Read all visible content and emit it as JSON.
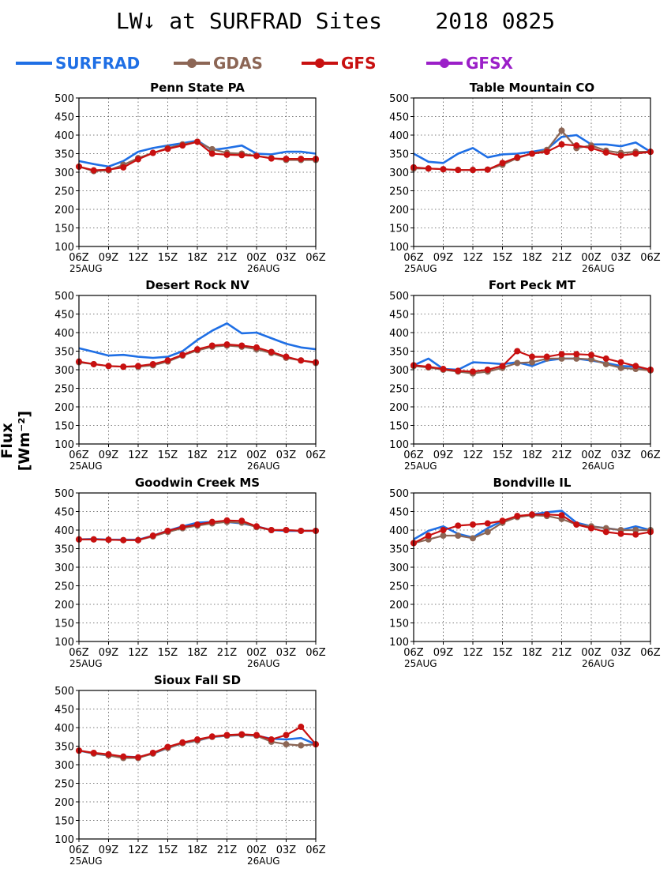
{
  "title": "LW↓ at SURFRAD Sites    2018 0825",
  "ylabel": "Flux [Wm⁻²]",
  "legend": [
    {
      "name": "SURFRAD",
      "color": "#1f6fe5",
      "marker": false
    },
    {
      "name": "GDAS",
      "color": "#8c6655",
      "marker": true
    },
    {
      "name": "GFS",
      "color": "#c81010",
      "marker": true
    },
    {
      "name": "GFSX",
      "color": "#9b1fc8",
      "marker": true
    }
  ],
  "axes": {
    "yticks": [
      100,
      150,
      200,
      250,
      300,
      350,
      400,
      450,
      500
    ],
    "ylim": [
      100,
      500
    ],
    "xticks": [
      "06Z",
      "09Z",
      "12Z",
      "15Z",
      "18Z",
      "21Z",
      "00Z",
      "03Z",
      "06Z"
    ],
    "xlim": [
      0,
      24
    ],
    "xday_labels": [
      {
        "x": 0,
        "text": "25AUG"
      },
      {
        "x": 18,
        "text": "26AUG"
      }
    ],
    "grid": true
  },
  "chart_data": [
    {
      "type": "line",
      "title": "Penn State PA",
      "x_hours": [
        0,
        1.5,
        3,
        4.5,
        6,
        7.5,
        9,
        10.5,
        12,
        13.5,
        15,
        16.5,
        18,
        19.5,
        21,
        22.5,
        24
      ],
      "series": [
        {
          "name": "SURFRAD",
          "values": [
            330,
            322,
            315,
            330,
            355,
            365,
            372,
            378,
            385,
            360,
            365,
            372,
            350,
            348,
            355,
            355,
            350
          ]
        },
        {
          "name": "GDAS",
          "values": [
            315,
            303,
            305,
            320,
            338,
            352,
            365,
            375,
            382,
            362,
            352,
            350,
            344,
            338,
            333,
            333,
            333
          ]
        },
        {
          "name": "GFS",
          "values": [
            315,
            305,
            307,
            313,
            335,
            352,
            363,
            372,
            382,
            350,
            347,
            346,
            344,
            337,
            336,
            336,
            336
          ]
        }
      ]
    },
    {
      "type": "line",
      "title": "Table Mountain CO",
      "x_hours": [
        0,
        1.5,
        3,
        4.5,
        6,
        7.5,
        9,
        10.5,
        12,
        13.5,
        15,
        16.5,
        18,
        19.5,
        21,
        22.5,
        24
      ],
      "series": [
        {
          "name": "SURFRAD",
          "values": [
            350,
            328,
            325,
            350,
            365,
            340,
            348,
            350,
            355,
            362,
            395,
            400,
            375,
            375,
            370,
            380,
            355
          ]
        },
        {
          "name": "GDAS",
          "values": [
            310,
            310,
            308,
            306,
            306,
            307,
            320,
            338,
            350,
            360,
            412,
            365,
            372,
            358,
            352,
            355,
            355
          ]
        },
        {
          "name": "GFS",
          "values": [
            313,
            310,
            308,
            306,
            306,
            307,
            325,
            340,
            350,
            355,
            375,
            372,
            365,
            353,
            345,
            350,
            355
          ]
        }
      ]
    },
    {
      "type": "line",
      "title": "Desert Rock NV",
      "x_hours": [
        0,
        1.5,
        3,
        4.5,
        6,
        7.5,
        9,
        10.5,
        12,
        13.5,
        15,
        16.5,
        18,
        19.5,
        21,
        22.5,
        24
      ],
      "series": [
        {
          "name": "SURFRAD",
          "values": [
            358,
            348,
            338,
            340,
            335,
            332,
            335,
            350,
            380,
            405,
            425,
            398,
            400,
            385,
            370,
            360,
            355
          ]
        },
        {
          "name": "GDAS",
          "values": [
            320,
            315,
            310,
            308,
            308,
            312,
            322,
            338,
            352,
            362,
            365,
            362,
            355,
            345,
            332,
            325,
            318
          ]
        },
        {
          "name": "GFS",
          "values": [
            322,
            315,
            310,
            308,
            310,
            315,
            325,
            340,
            355,
            365,
            368,
            365,
            360,
            348,
            335,
            325,
            320
          ]
        }
      ]
    },
    {
      "type": "line",
      "title": "Fort Peck MT",
      "x_hours": [
        0,
        1.5,
        3,
        4.5,
        6,
        7.5,
        9,
        10.5,
        12,
        13.5,
        15,
        16.5,
        18,
        19.5,
        21,
        22.5,
        24
      ],
      "series": [
        {
          "name": "SURFRAD",
          "values": [
            312,
            330,
            302,
            300,
            320,
            318,
            315,
            320,
            310,
            325,
            330,
            330,
            325,
            318,
            310,
            308,
            300
          ]
        },
        {
          "name": "GDAS",
          "values": [
            310,
            306,
            300,
            295,
            290,
            295,
            305,
            318,
            320,
            330,
            330,
            330,
            328,
            315,
            305,
            302,
            298
          ]
        },
        {
          "name": "GFS",
          "values": [
            312,
            308,
            302,
            297,
            295,
            300,
            310,
            350,
            335,
            335,
            342,
            342,
            340,
            330,
            320,
            310,
            300
          ]
        }
      ]
    },
    {
      "type": "line",
      "title": "Goodwin Creek MS",
      "x_hours": [
        0,
        1.5,
        3,
        4.5,
        6,
        7.5,
        9,
        10.5,
        12,
        13.5,
        15,
        16.5,
        18,
        19.5,
        21,
        22.5,
        24
      ],
      "series": [
        {
          "name": "SURFRAD",
          "values": [
            375,
            376,
            374,
            374,
            374,
            385,
            398,
            410,
            420,
            422,
            422,
            418,
            410,
            400,
            398,
            398,
            398
          ]
        },
        {
          "name": "GDAS",
          "values": [
            375,
            375,
            374,
            373,
            373,
            383,
            395,
            405,
            412,
            418,
            422,
            420,
            408,
            400,
            400,
            398,
            398
          ]
        },
        {
          "name": "GFS",
          "values": [
            375,
            375,
            374,
            373,
            373,
            385,
            398,
            408,
            415,
            422,
            426,
            425,
            410,
            400,
            400,
            398,
            398
          ]
        }
      ]
    },
    {
      "type": "line",
      "title": "Bondville IL",
      "x_hours": [
        0,
        1.5,
        3,
        4.5,
        6,
        7.5,
        9,
        10.5,
        12,
        13.5,
        15,
        16.5,
        18,
        19.5,
        21,
        22.5,
        24
      ],
      "series": [
        {
          "name": "SURFRAD",
          "values": [
            375,
            398,
            410,
            390,
            380,
            405,
            425,
            435,
            442,
            448,
            452,
            420,
            410,
            405,
            400,
            410,
            400
          ]
        },
        {
          "name": "GDAS",
          "values": [
            365,
            375,
            385,
            385,
            378,
            395,
            420,
            435,
            440,
            438,
            430,
            415,
            410,
            405,
            400,
            400,
            400
          ]
        },
        {
          "name": "GFS",
          "values": [
            365,
            385,
            400,
            412,
            415,
            418,
            425,
            438,
            442,
            442,
            440,
            415,
            405,
            395,
            390,
            388,
            395
          ]
        }
      ]
    },
    {
      "type": "line",
      "title": "Sioux Fall SD",
      "x_hours": [
        0,
        1.5,
        3,
        4.5,
        6,
        7.5,
        9,
        10.5,
        12,
        13.5,
        15,
        16.5,
        18,
        19.5,
        21,
        22.5,
        24
      ],
      "series": [
        {
          "name": "SURFRAD",
          "values": [
            338,
            330,
            325,
            322,
            320,
            330,
            345,
            358,
            365,
            375,
            378,
            380,
            378,
            370,
            368,
            372,
            355
          ]
        },
        {
          "name": "GDAS",
          "values": [
            338,
            330,
            325,
            318,
            318,
            330,
            345,
            358,
            365,
            375,
            378,
            380,
            378,
            362,
            355,
            352,
            355
          ]
        },
        {
          "name": "GFS",
          "values": [
            338,
            332,
            328,
            322,
            320,
            332,
            348,
            360,
            368,
            376,
            380,
            382,
            380,
            368,
            380,
            402,
            355
          ]
        }
      ]
    }
  ]
}
